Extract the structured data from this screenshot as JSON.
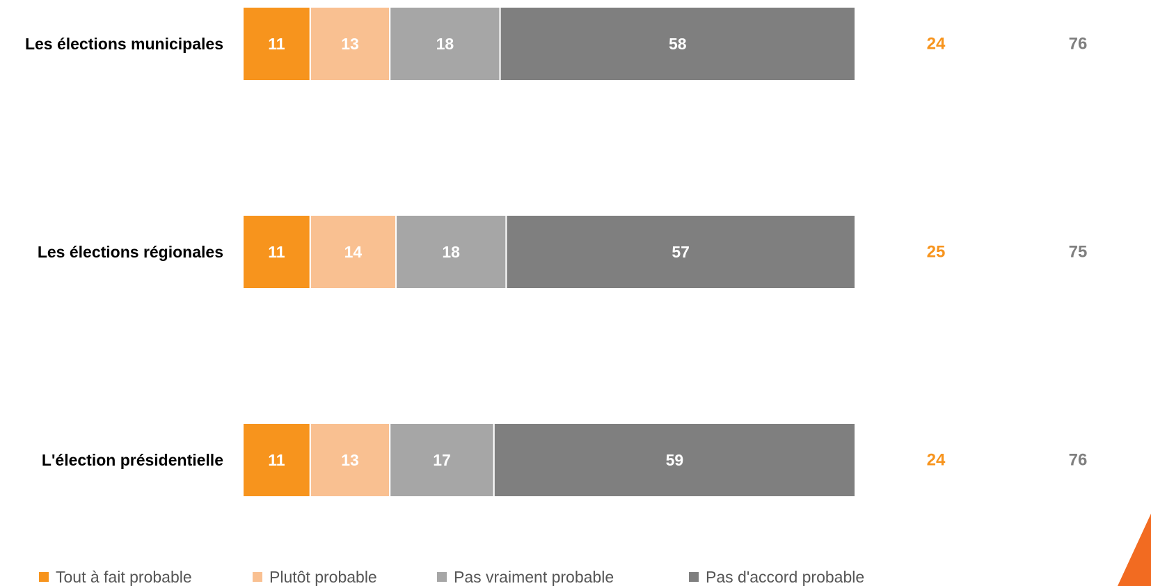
{
  "chart_data": {
    "type": "bar",
    "orientation": "horizontal",
    "stacked": true,
    "title": "",
    "xlabel": "",
    "ylabel": "",
    "xlim": [
      0,
      100
    ],
    "grid": false,
    "legend_position": "bottom",
    "categories": [
      "Les élections municipales",
      "Les élections régionales",
      "L'élection présidentielle"
    ],
    "series": [
      {
        "name": "Tout à fait probable",
        "color": "#F7941D",
        "values": [
          11,
          11,
          11
        ]
      },
      {
        "name": "Plutôt probable",
        "color": "#F9C091",
        "values": [
          13,
          14,
          13
        ]
      },
      {
        "name": "Pas vraiment probable",
        "color": "#A6A6A6",
        "values": [
          18,
          18,
          17
        ]
      },
      {
        "name": "Pas d'accord probable",
        "color": "#7F7F7F",
        "values": [
          58,
          57,
          59
        ]
      }
    ],
    "totals": [
      {
        "color": "#F7941D",
        "values": [
          24,
          25,
          24
        ]
      },
      {
        "color": "#7F7F7F",
        "values": [
          76,
          75,
          76
        ]
      }
    ]
  },
  "decor": {
    "corner_accent_color": "#F26B21"
  }
}
